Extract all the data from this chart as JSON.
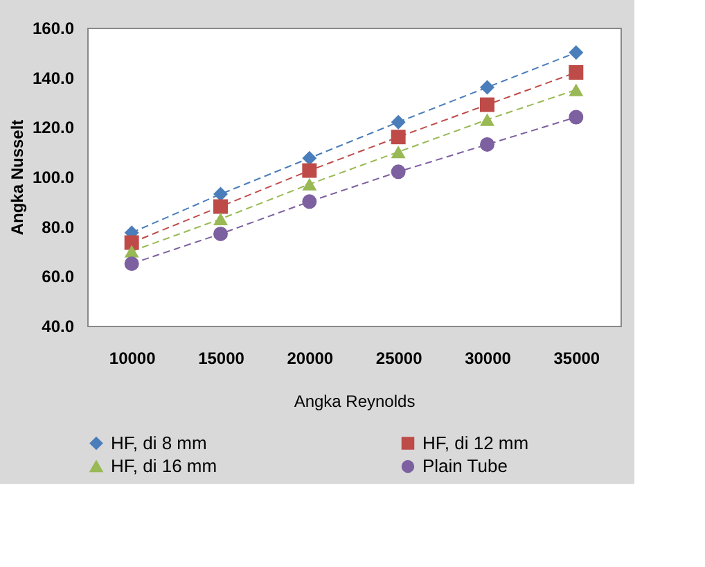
{
  "chart_data": {
    "type": "line",
    "xlabel": "Angka Reynolds",
    "ylabel": "Angka Nusselt",
    "categories": [
      "10000",
      "15000",
      "20000",
      "25000",
      "30000",
      "35000"
    ],
    "series": [
      {
        "name": "HF, di 8 mm",
        "color": "#4a7ebb",
        "marker": "diamond",
        "values": [
          77.5,
          93,
          107.5,
          122,
          136,
          150
        ]
      },
      {
        "name": "HF, di 12 mm",
        "color": "#be4b48",
        "marker": "square",
        "values": [
          73.5,
          88,
          102.5,
          116,
          129,
          142
        ]
      },
      {
        "name": "HF, di 16 mm",
        "color": "#98b954",
        "marker": "triangle",
        "values": [
          70,
          83,
          97,
          110,
          123,
          135
        ]
      },
      {
        "name": "Plain Tube",
        "color": "#7d60a0",
        "marker": "circle",
        "values": [
          65,
          77,
          90,
          102,
          113,
          124
        ]
      }
    ],
    "ylim": [
      40,
      160
    ],
    "yticks": [
      {
        "value": 40,
        "label": "40.0"
      },
      {
        "value": 60,
        "label": "60.0"
      },
      {
        "value": 80,
        "label": "80.0"
      },
      {
        "value": 100,
        "label": "100.0"
      },
      {
        "value": 120,
        "label": "120.0"
      },
      {
        "value": 140,
        "label": "140.0"
      },
      {
        "value": 160,
        "label": "160.0"
      }
    ],
    "grid": false,
    "legend": "bottom",
    "line_style": "dashed"
  }
}
